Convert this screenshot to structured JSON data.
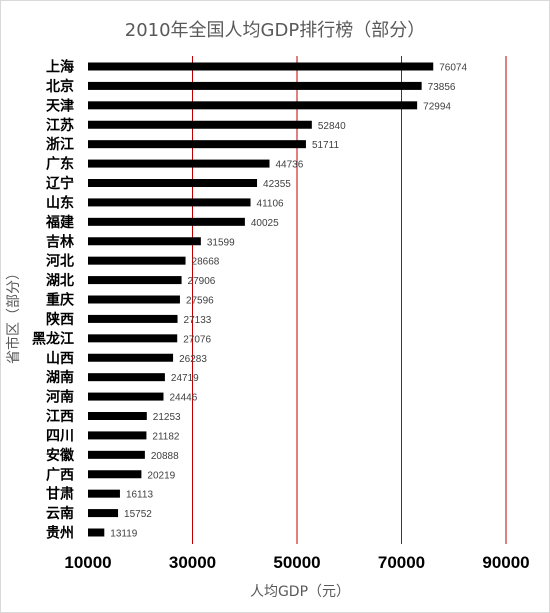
{
  "chart_data": {
    "type": "bar",
    "orientation": "horizontal",
    "title": "2010年全国人均GDP排行榜（部分）",
    "xlabel": "人均GDP（元）",
    "ylabel": "省市区（部分）",
    "xlim": [
      10000,
      90000
    ],
    "xticks": [
      "10000",
      "30000",
      "50000",
      "70000",
      "90000"
    ],
    "grid": "vertical",
    "gridline_color": "#c00000",
    "bar_color": "#000000",
    "categories": [
      "上海",
      "北京",
      "天津",
      "江苏",
      "浙江",
      "广东",
      "辽宁",
      "山东",
      "福建",
      "吉林",
      "河北",
      "湖北",
      "重庆",
      "陕西",
      "黑龙江",
      "山西",
      "湖南",
      "河南",
      "江西",
      "四川",
      "安徽",
      "广西",
      "甘肃",
      "云南",
      "贵州"
    ],
    "values": [
      76074,
      73856,
      72994,
      52840,
      51711,
      44736,
      42355,
      41106,
      40025,
      31599,
      28668,
      27906,
      27596,
      27133,
      27076,
      26283,
      24719,
      24446,
      21253,
      21182,
      20888,
      20219,
      16113,
      15752,
      13119
    ]
  }
}
